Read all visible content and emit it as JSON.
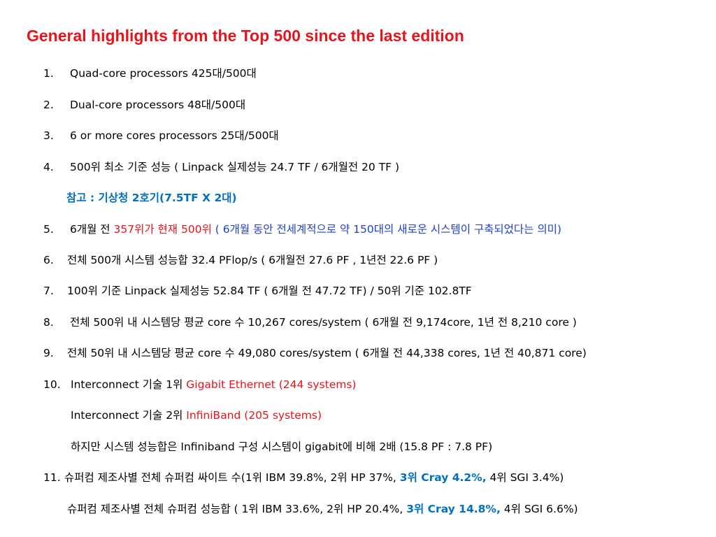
{
  "title": "General highlights from the Top 500 since the last edition",
  "items": [
    {
      "num": "1.",
      "text": "Quad-core processors 425대/500대"
    },
    {
      "num": "2.",
      "text": "Dual-core processors 48대/500대"
    },
    {
      "num": "3.",
      "text": "6 or more cores processors 25대/500대"
    },
    {
      "num": "4.",
      "text": "500위 최소 기준 성능 ( Linpack 실제성능 24.7 TF / 6개월전   20 TF )"
    },
    {
      "num": "",
      "note": "참고 : 기상청 2호기(7.5TF X 2대)"
    },
    {
      "num": "5.",
      "a": "6개월 전 ",
      "b": "357위가 현재 500위 ",
      "c": "( 6개월 동안 전세계적으로 약 150대의 새로운 시스템이 구축되었다는 의미)"
    },
    {
      "num": "6.",
      "text": "전체 500개 시스템 성능합   32.4 PFlop/s ( 6개월전   27.6 PF , 1년전   22.6 PF )"
    },
    {
      "num": "7.",
      "text": "100위 기준 Linpack 실제성능 52.84 TF ( 6개월 전 47.72 TF)   / 50위 기준 102.8TF"
    },
    {
      "num": "8.",
      "text": "전체 500위 내 시스템당 평균 core 수 10,267 cores/system ( 6개월 전 9,174core, 1년 전 8,210 core )"
    },
    {
      "num": "9.",
      "text": "전체 50위 내 시스템당 평균 core 수 49,080 cores/system ( 6개월 전 44,338 cores, 1년 전 40,871 core)"
    },
    {
      "num": "10.",
      "a": "Interconnect 기술    1위 ",
      "b": "Gigabit Ethernet (244 systems)"
    },
    {
      "num": "",
      "a": "Interconnect 기술   2위 ",
      "b": "InfiniBand (205 systems)"
    },
    {
      "num": "",
      "text": "하지만 시스템 성능합은   Infiniband   구성 시스템이 gigabit에 비해 2배 (15.8 PF : 7.8 PF)"
    },
    {
      "num": "11.",
      "a": "슈퍼컴 제조사별 전체 슈퍼컴 싸이트 수(1위 IBM   39.8%, 2위 HP 37%, ",
      "b": "3위 Cray 4.2%,",
      "c": " 4위 SGI 3.4%)"
    },
    {
      "num": "",
      "a": "슈퍼컴 제조사별 전체 슈퍼컴 성능합 ( 1위 IBM 33.6%, 2위 HP 20.4%, ",
      "b": "3위 Cray 14.8%,",
      "c": " 4위 SGI 6.6%)"
    }
  ],
  "colors": {
    "title": "#e8141b",
    "red": "#e8141b",
    "blue": "#0070c0",
    "body": "#000000"
  }
}
